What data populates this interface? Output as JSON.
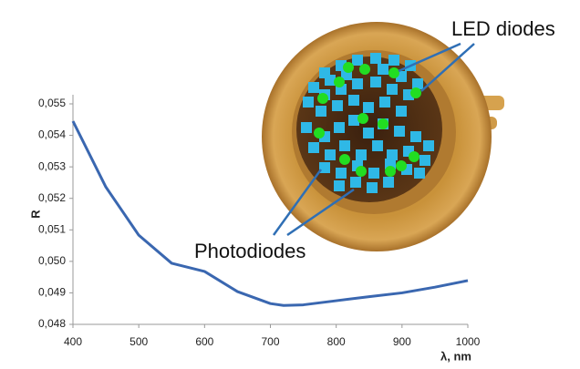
{
  "chart_data": {
    "type": "line",
    "x_label": "λ, nm",
    "y_label": "R",
    "x": [
      400,
      450,
      500,
      550,
      600,
      650,
      700,
      720,
      750,
      800,
      850,
      900,
      950,
      1000
    ],
    "series": [
      {
        "name": "R",
        "color": "#3a67b0",
        "values": [
          0.05445,
          0.05236,
          0.05083,
          0.04994,
          0.04968,
          0.04904,
          0.04866,
          0.0486,
          0.04862,
          0.04875,
          0.04888,
          0.049,
          0.04918,
          0.04939
        ]
      }
    ],
    "xlim": [
      400,
      1000
    ],
    "xticks": [
      400,
      500,
      600,
      700,
      800,
      900,
      1000
    ],
    "ylim": [
      0.048,
      0.055
    ],
    "yticks": [
      {
        "value": 0.048,
        "label": "0,048"
      },
      {
        "value": 0.049,
        "label": "0,049"
      },
      {
        "value": 0.05,
        "label": "0,050"
      },
      {
        "value": 0.051,
        "label": "0,051"
      },
      {
        "value": 0.052,
        "label": "0,052"
      },
      {
        "value": 0.053,
        "label": "0,053"
      },
      {
        "value": 0.054,
        "label": "0,054"
      },
      {
        "value": 0.055,
        "label": "0,055"
      }
    ],
    "grid": false,
    "annotations": [
      "LED diodes",
      "Photodiodes"
    ]
  }
}
